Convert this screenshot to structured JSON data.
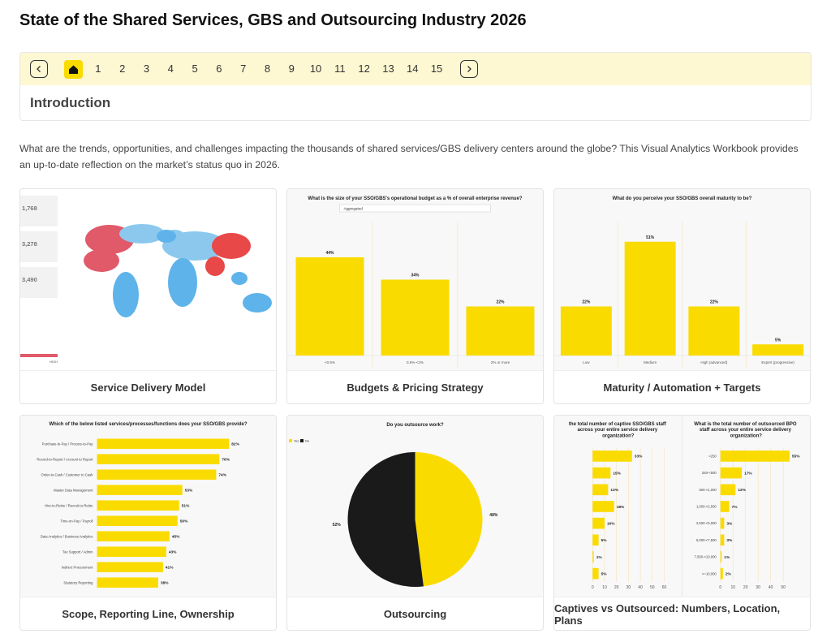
{
  "header": {
    "title": "State of the Shared Services, GBS and Outsourcing Industry 2026"
  },
  "nav": {
    "pages": [
      "1",
      "2",
      "3",
      "4",
      "5",
      "6",
      "7",
      "8",
      "9",
      "10",
      "11",
      "12",
      "13",
      "14",
      "15"
    ]
  },
  "section": {
    "title": "Introduction"
  },
  "intro": "What are the trends, opportunities, and challenges impacting the thousands of shared services/GBS delivery centers around the globe? This Visual Analytics Workbook provides an up-to-date reflection on the market’s status quo in 2026.",
  "cards": [
    {
      "caption": "Service Delivery Model",
      "charts": [
        {
          "type": "map",
          "stats": [
            "1,768",
            "3,278",
            "3,490"
          ],
          "legend": "HIGH"
        }
      ]
    },
    {
      "caption": "Budgets & Pricing Strategy",
      "charts": [
        {
          "type": "vbar",
          "title": "What is the size of your SSO/GBS's operational budget as a % of overall enterprise revenue?",
          "filter": "Aggregated",
          "categories": [
            "<0.5%",
            "0.5%-<2%",
            "2% or more"
          ],
          "values": [
            44,
            34,
            22
          ],
          "value_labels": [
            "44%",
            "34%",
            "22%"
          ],
          "color": "#fadb00",
          "ylim": [
            0,
            60
          ]
        }
      ]
    },
    {
      "caption": "Maturity / Automation + Targets",
      "charts": [
        {
          "type": "vbar",
          "title": "What do you perceive your SSO/GBS overall maturity to be?",
          "categories": [
            "Low",
            "Medium",
            "High (advanced)",
            "Expert (progressive)"
          ],
          "values": [
            22,
            51,
            22,
            5
          ],
          "value_labels": [
            "22%",
            "51%",
            "22%",
            "5%"
          ],
          "color": "#fadb00",
          "ylim": [
            0,
            60
          ]
        }
      ]
    },
    {
      "caption": "Scope, Reporting Line, Ownership",
      "charts": [
        {
          "type": "hbar",
          "title": "Which of the below listed services/processes/functions does your SSO/GBS provide?",
          "categories": [
            "Purchase-to-Pay / Procure-to-Pay",
            "Record-to-Report / Account to Report",
            "Order-to-Cash / Customer to Cash",
            "Master Data Management",
            "Hire-to-Retire / Recruit-to-Retire",
            "Time-on-Pay / Payroll",
            "Data Analytics / Business Analytics",
            "Tax Support / Admin",
            "Indirect Procurement",
            "Statutory Reporting"
          ],
          "values": [
            82,
            76,
            74,
            53,
            51,
            50,
            45,
            43,
            41,
            38
          ],
          "value_labels": [
            "82%",
            "76%",
            "74%",
            "53%",
            "51%",
            "50%",
            "45%",
            "43%",
            "41%",
            "38%"
          ],
          "color": "#fadb00",
          "xlim": [
            0,
            100
          ]
        }
      ]
    },
    {
      "caption": "Outsourcing",
      "charts": [
        {
          "type": "pie",
          "title": "Do you outsource work?",
          "categories": [
            "Yes",
            "No"
          ],
          "values": [
            48,
            52
          ],
          "value_labels": [
            "48%",
            "52%"
          ],
          "colors": [
            "#fadb00",
            "#1a1a1a"
          ]
        }
      ]
    },
    {
      "caption": "Captives vs Outsourced: Numbers, Location, Plans",
      "charts": [
        {
          "type": "hbar",
          "title": "the total number of captive SSO/GBS staff across your entire service delivery organization?",
          "categories": [
            null,
            null,
            null,
            null,
            null,
            null,
            null,
            null
          ],
          "values": [
            33,
            15,
            13,
            18,
            10,
            5,
            1,
            5
          ],
          "value_labels": [
            "33%",
            "15%",
            "13%",
            "18%",
            "10%",
            "5%",
            "1%",
            "5%"
          ],
          "color": "#fadb00",
          "xlim": [
            0,
            60
          ],
          "xticks": [
            0,
            10,
            20,
            30,
            40,
            50,
            60
          ]
        },
        {
          "type": "hbar",
          "title": "What is the total number of outsourced BPO staff across your entire service delivery organization?",
          "categories": [
            "<250",
            "250-<500",
            "500-<1,000",
            "1,000-<2,500",
            "2,500-<5,000",
            "5,000-<7,500",
            "7,500-<10,000",
            ">=10,000"
          ],
          "values": [
            55,
            17,
            12,
            7,
            3,
            3,
            1,
            2
          ],
          "value_labels": [
            "55%",
            "17%",
            "12%",
            "7%",
            "3%",
            "3%",
            "1%",
            "2%"
          ],
          "color": "#fadb00",
          "xlim": [
            0,
            57
          ],
          "xticks": [
            0,
            10,
            20,
            30,
            40,
            50
          ]
        }
      ]
    }
  ]
}
